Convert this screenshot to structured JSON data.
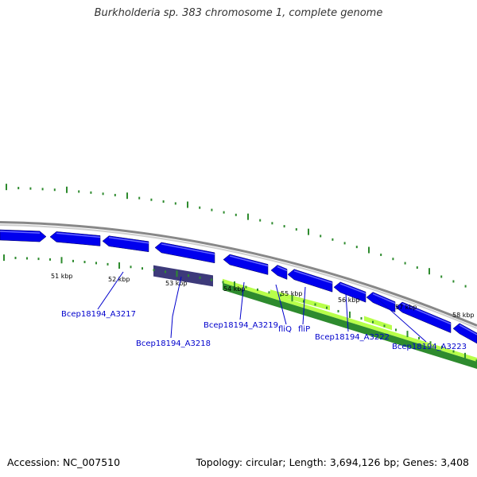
{
  "title": "Burkholderia sp. 383 chromosome 1, complete genome",
  "footer": {
    "accession": "Accession: NC_007510",
    "summary": "Topology: circular; Length: 3,694,126 bp; Genes: 3,408"
  },
  "colors": {
    "backbone": "#888888",
    "cds_forward": "#0000ee",
    "cds_reverse": "#0000ee",
    "cds_other": "#3d3a7a",
    "feature_green": "#2e8b2e",
    "feature_lightgreen": "#b8ff4a",
    "tick": "#2e8b2e",
    "gene_label": "#0000cc"
  },
  "tick_labels": [
    "51 kbp",
    "52 kbp",
    "53 kbp",
    "54 kbp",
    "55 kbp",
    "56 kbp",
    "57 kbp",
    "58 kbp"
  ],
  "gene_labels": [
    "Bcep18194_A3217",
    "Bcep18194_A3218",
    "Bcep18194_A3219",
    "fliQ",
    "fliP",
    "Bcep18194_A3222",
    "Bcep18194_A3223"
  ]
}
